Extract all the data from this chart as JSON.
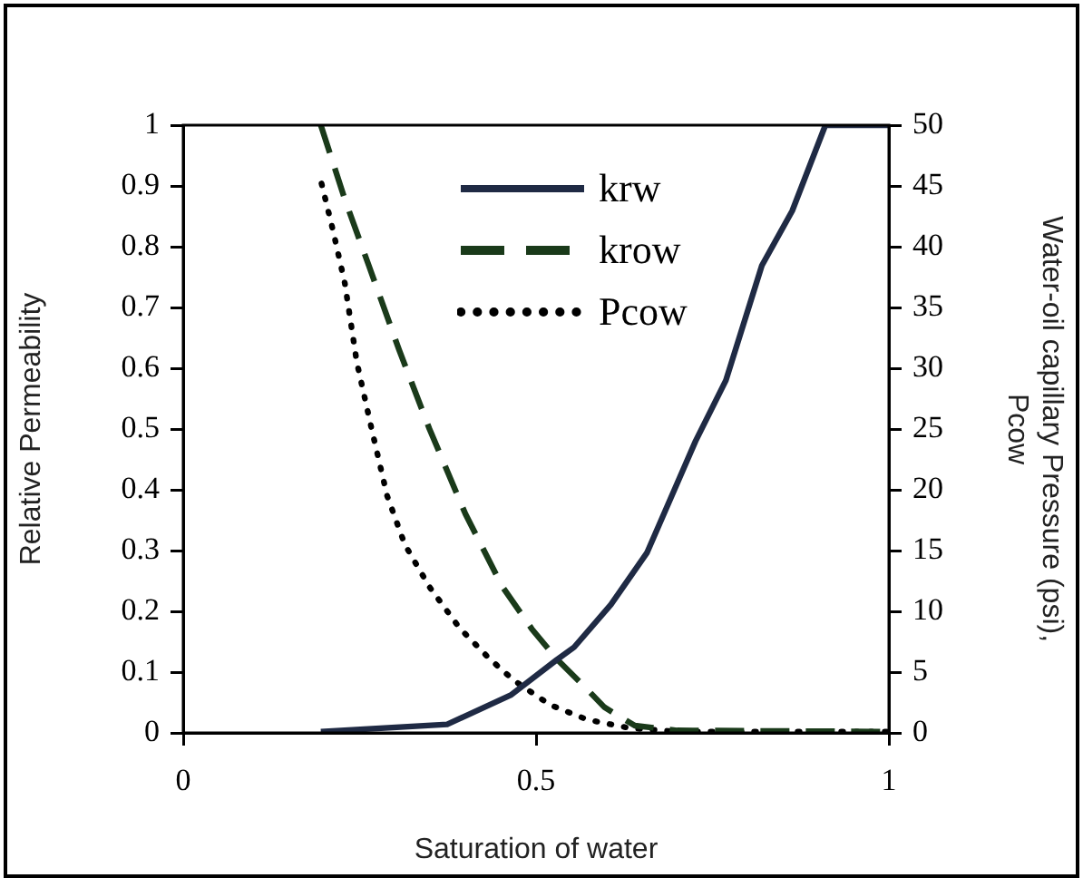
{
  "chart_data": {
    "type": "line",
    "xlabel": "Saturation of water",
    "ylabel": "Relative Permeability",
    "y2label": "Water-oil capillary Pressure (psi), Pcow",
    "xlim": [
      0,
      1
    ],
    "xticks": [
      0,
      0.5,
      1
    ],
    "ylim": [
      0,
      1
    ],
    "yticks": [
      0,
      0.1,
      0.2,
      0.3,
      0.4,
      0.5,
      0.6,
      0.7,
      0.8,
      0.9,
      1
    ],
    "y2lim": [
      0,
      50
    ],
    "y2ticks": [
      0,
      5,
      10,
      15,
      20,
      25,
      30,
      35,
      40,
      45,
      50
    ],
    "legend": "top",
    "marker": "none",
    "series": [
      {
        "name": "krw",
        "color": "#1f2a44",
        "line_style": "solid",
        "x": [
          0.195,
          0.374,
          0.464,
          0.529,
          0.554,
          0.606,
          0.657,
          0.726,
          0.769,
          0.82,
          0.863,
          0.91,
          1
        ],
        "values": [
          0.002,
          0.014,
          0.062,
          0.12,
          0.141,
          0.211,
          0.296,
          0.48,
          0.58,
          0.769,
          0.859,
          1,
          1
        ]
      },
      {
        "name": "krow",
        "color": "#1a3a1a",
        "line_style": "dashed",
        "x": [
          0.195,
          0.229,
          0.263,
          0.306,
          0.349,
          0.4,
          0.452,
          0.494,
          0.529,
          0.572,
          0.597,
          0.64,
          0.7,
          1
        ],
        "values": [
          1,
          0.878,
          0.769,
          0.63,
          0.5,
          0.36,
          0.241,
          0.171,
          0.122,
          0.072,
          0.042,
          0.012,
          0.004,
          0.002
        ]
      },
      {
        "name": "Pcow",
        "color": "#000000",
        "line_style": "dotted",
        "axis": "y2",
        "x": [
          0.196,
          0.212,
          0.229,
          0.246,
          0.267,
          0.289,
          0.314,
          0.349,
          0.392,
          0.434,
          0.469,
          0.52,
          0.572,
          0.632,
          0.7,
          1
        ],
        "values": [
          45.2,
          41.4,
          37,
          30.5,
          25,
          19.5,
          15.5,
          12,
          8.6,
          6.1,
          4.3,
          2.3,
          1.1,
          0.4,
          0.1,
          0.1
        ]
      }
    ]
  }
}
